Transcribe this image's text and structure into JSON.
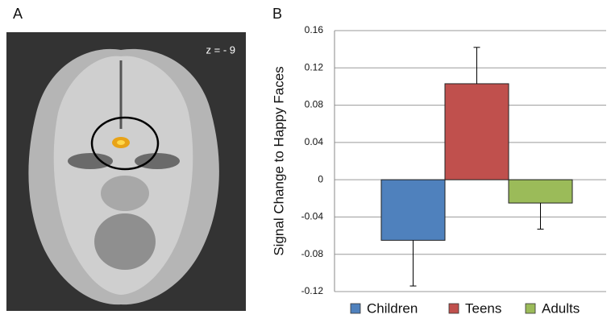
{
  "panel_a": {
    "label": "A",
    "annotation": "z = - 9"
  },
  "panel_b": {
    "label": "B"
  },
  "chart_data": {
    "type": "bar",
    "y_label": "Signal Change to Happy Faces",
    "series": [
      {
        "name": "Children",
        "color": "#4f81bd",
        "values": [
          -0.065
        ],
        "errors": [
          0.049
        ]
      },
      {
        "name": "Teens",
        "color": "#c0504d",
        "values": [
          0.103
        ],
        "errors": [
          0.039
        ]
      },
      {
        "name": "Adults",
        "color": "#9bbb59",
        "values": [
          -0.025
        ],
        "errors": [
          0.028
        ]
      }
    ],
    "ylim": [
      -0.12,
      0.16
    ],
    "yticks": [
      -0.12,
      -0.08,
      -0.04,
      0,
      0.04,
      0.08,
      0.12,
      0.16
    ],
    "grid": true,
    "legend": "bottom"
  }
}
